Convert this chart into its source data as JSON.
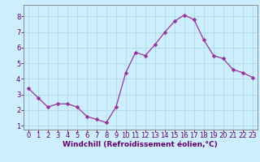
{
  "x": [
    0,
    1,
    2,
    3,
    4,
    5,
    6,
    7,
    8,
    9,
    10,
    11,
    12,
    13,
    14,
    15,
    16,
    17,
    18,
    19,
    20,
    21,
    22,
    23
  ],
  "y": [
    3.4,
    2.8,
    2.2,
    2.4,
    2.4,
    2.2,
    1.6,
    1.4,
    1.2,
    2.2,
    4.4,
    5.7,
    5.5,
    6.2,
    7.0,
    7.7,
    8.1,
    7.8,
    6.5,
    5.5,
    5.3,
    4.6,
    4.4,
    4.1
  ],
  "line_color": "#993399",
  "marker": "D",
  "marker_size": 2.5,
  "bg_color": "#cceeff",
  "grid_color": "#aadddd",
  "xlabel": "Windchill (Refroidissement éolien,°C)",
  "ylabel": "",
  "xlim": [
    -0.5,
    23.5
  ],
  "ylim": [
    0.75,
    8.75
  ],
  "yticks": [
    1,
    2,
    3,
    4,
    5,
    6,
    7,
    8
  ],
  "xticks": [
    0,
    1,
    2,
    3,
    4,
    5,
    6,
    7,
    8,
    9,
    10,
    11,
    12,
    13,
    14,
    15,
    16,
    17,
    18,
    19,
    20,
    21,
    22,
    23
  ],
  "tick_color": "#660066",
  "label_color": "#660066",
  "label_fontsize": 6.5,
  "tick_fontsize": 6.0,
  "spine_color": "#888888"
}
